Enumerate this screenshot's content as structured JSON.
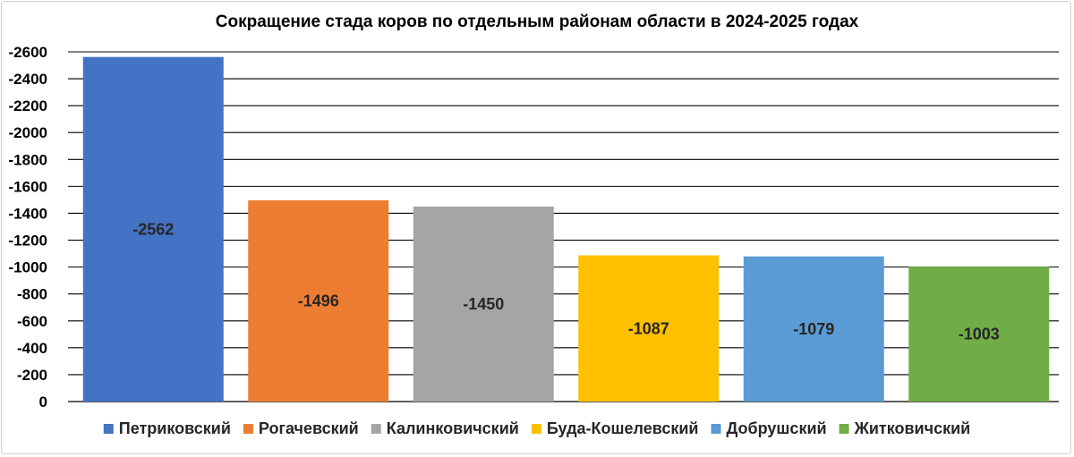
{
  "chart_data": {
    "type": "bar",
    "title": "Сокращение стада коров по отдельным районам области в 2024-2025 годах",
    "categories": [
      "Петриковский",
      "Рогачевский",
      "Калинковичский",
      "Буда-Кошелевский",
      "Добрушский",
      "Житковичский"
    ],
    "values": [
      -2562,
      -1496,
      -1450,
      -1087,
      -1079,
      -1003
    ],
    "value_labels": [
      "-2562",
      "-1496",
      "-1450",
      "-1087",
      "-1079",
      "-1003"
    ],
    "colors": [
      "#4472C4",
      "#ED7D31",
      "#A5A5A5",
      "#FFC000",
      "#5B9BD5",
      "#70AD47"
    ],
    "yticks": [
      "0",
      "-200",
      "-400",
      "-600",
      "-800",
      "-1000",
      "-1200",
      "-1400",
      "-1600",
      "-1800",
      "-2000",
      "-2200",
      "-2400",
      "-2600"
    ],
    "ylim": [
      0,
      -2600
    ],
    "ytick_step": -200,
    "axis_reversed": true,
    "grid": true,
    "legend": "bottom"
  }
}
